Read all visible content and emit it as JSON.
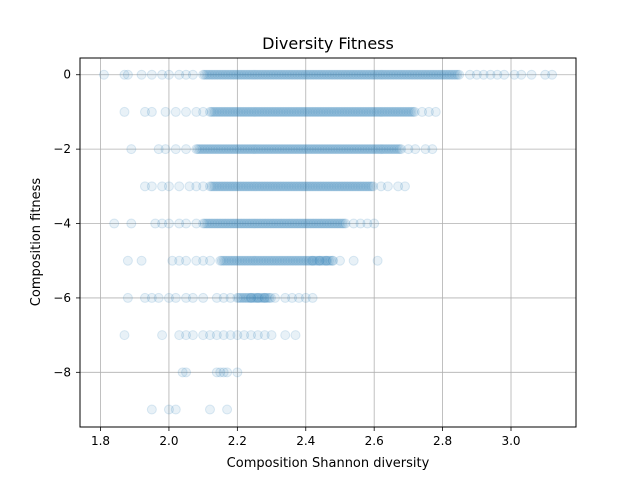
{
  "chart_data": {
    "type": "scatter",
    "title": "Diversity Fitness",
    "xlabel": "Composition Shannon diversity",
    "ylabel": "Composition fitness",
    "xlim": [
      1.74,
      3.19
    ],
    "ylim": [
      -9.47,
      0.45
    ],
    "xticks": [
      1.8,
      2.0,
      2.2,
      2.4,
      2.6,
      2.8,
      3.0
    ],
    "xtick_labels": [
      "1.8",
      "2.0",
      "2.2",
      "2.4",
      "2.6",
      "2.8",
      "3.0"
    ],
    "yticks": [
      0,
      -2,
      -4,
      -6,
      -8
    ],
    "ytick_labels": [
      "0",
      "−2",
      "−4",
      "−6",
      "−8"
    ],
    "grid": true,
    "marker_color": "#1f77b4",
    "marker_alpha": 0.1,
    "dense_ranges": [
      {
        "y": 0,
        "x_min": 2.1,
        "x_max": 2.85
      },
      {
        "y": -1,
        "x_min": 2.12,
        "x_max": 2.72
      },
      {
        "y": -2,
        "x_min": 2.08,
        "x_max": 2.68
      },
      {
        "y": -3,
        "x_min": 2.12,
        "x_max": 2.6
      },
      {
        "y": -4,
        "x_min": 2.1,
        "x_max": 2.52
      },
      {
        "y": -5,
        "x_min": 2.15,
        "x_max": 2.48
      },
      {
        "y": -6,
        "x_min": 2.2,
        "x_max": 2.3
      }
    ],
    "sparse_points": [
      {
        "y": 0,
        "x": [
          1.81,
          1.87,
          1.88,
          1.92,
          1.95,
          1.98,
          2.0,
          2.03,
          2.05,
          2.07,
          2.88,
          2.9,
          2.92,
          2.94,
          2.96,
          2.98,
          3.01,
          3.03,
          3.06,
          3.1,
          3.12
        ]
      },
      {
        "y": -1,
        "x": [
          1.87,
          1.93,
          1.95,
          1.99,
          2.02,
          2.05,
          2.08,
          2.1,
          2.74,
          2.76,
          2.78
        ]
      },
      {
        "y": -2,
        "x": [
          1.89,
          1.97,
          1.99,
          2.02,
          2.05,
          2.7,
          2.72,
          2.75,
          2.77
        ]
      },
      {
        "y": -3,
        "x": [
          1.93,
          1.95,
          1.98,
          2.0,
          2.03,
          2.06,
          2.08,
          2.1,
          2.62,
          2.64,
          2.67,
          2.69
        ]
      },
      {
        "y": -4,
        "x": [
          1.84,
          1.89,
          1.96,
          1.98,
          2.0,
          2.03,
          2.05,
          2.08,
          2.54,
          2.56,
          2.58,
          2.6
        ]
      },
      {
        "y": -5,
        "x": [
          1.88,
          1.92,
          2.01,
          2.03,
          2.05,
          2.08,
          2.1,
          2.12,
          2.42,
          2.44,
          2.46,
          2.48,
          2.5,
          2.54,
          2.61
        ]
      },
      {
        "y": -6,
        "x": [
          1.88,
          1.93,
          1.95,
          1.97,
          2.0,
          2.02,
          2.05,
          2.07,
          2.1,
          2.14,
          2.16,
          2.18,
          2.24,
          2.26,
          2.28,
          2.31,
          2.34,
          2.36,
          2.38,
          2.4,
          2.42
        ]
      },
      {
        "y": -7,
        "x": [
          1.87,
          1.98,
          2.03,
          2.05,
          2.07,
          2.1,
          2.12,
          2.14,
          2.16,
          2.18,
          2.2,
          2.22,
          2.24,
          2.26,
          2.28,
          2.3,
          2.34,
          2.37
        ]
      },
      {
        "y": -8,
        "x": [
          2.04,
          2.05,
          2.14,
          2.15,
          2.16,
          2.17,
          2.2
        ]
      },
      {
        "y": -9,
        "x": [
          1.95,
          2.0,
          2.02,
          2.12,
          2.17
        ]
      }
    ]
  }
}
